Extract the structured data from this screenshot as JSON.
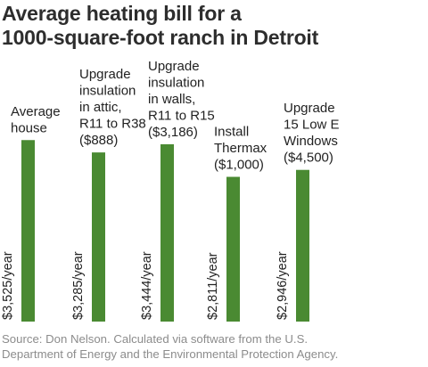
{
  "title_lines": [
    "Average heating bill for a",
    "1000-square-foot ranch in Detroit"
  ],
  "source_lines": [
    "Source: Don Nelson. Calculated via software from the U.S.",
    "Department of Energy and the Environmental Protection Agency."
  ],
  "colors": {
    "bar": "#4a8a32",
    "text": "#222222",
    "title": "#2d2d2d",
    "source": "#8c8c8c"
  },
  "chart_data": {
    "type": "bar",
    "title": "Average heating bill for a 1000-square-foot ranch in Detroit",
    "categories": [
      "Average house",
      "Upgrade insulation in attic, R11 to R38 ($888)",
      "Upgrade insulation in walls, R11 to R15 ($3,186)",
      "Install Thermax ($1,000)",
      "Upgrade 15 Low E Windows ($4,500)"
    ],
    "category_label_lines": [
      [
        "Average",
        "house"
      ],
      [
        "Upgrade",
        "insulation",
        "in attic,",
        "R11 to R38",
        "($888)"
      ],
      [
        "Upgrade",
        "insulation",
        "in walls,",
        "R11 to R15",
        "($3,186)"
      ],
      [
        "Install",
        "Thermax",
        "($1,000)"
      ],
      [
        "Upgrade",
        "15 Low E",
        "Windows",
        "($4,500)"
      ]
    ],
    "values": [
      3525,
      3285,
      3444,
      2811,
      2946
    ],
    "value_labels": [
      "$3,525/year",
      "$3,285/year",
      "$3,444/year",
      "$2,811/year",
      "$2,946/year"
    ],
    "xlabel": "",
    "ylabel": "",
    "grid": false,
    "legend": "none"
  }
}
